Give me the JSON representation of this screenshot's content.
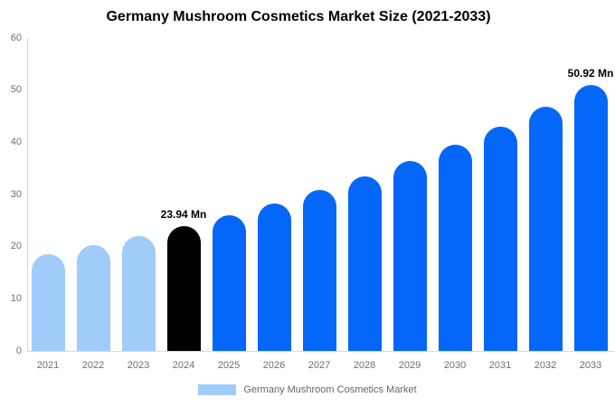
{
  "title": "Germany Mushroom Cosmetics Market Size (2021-2033)",
  "colors": {
    "bar_light": "#A0CCFA",
    "bar_highlight": "#000000",
    "bar_primary": "#0567FA",
    "axis_line": "#D9D9D9",
    "axis_text": "#6E6E6E",
    "legend_text": "#666666",
    "title_text": "#000000",
    "background": "#FFFFFF"
  },
  "chart_data": {
    "type": "bar",
    "title": "Germany Mushroom Cosmetics Market Size (2021-2033)",
    "xlabel": "",
    "ylabel": "",
    "ylim": [
      0,
      60
    ],
    "y_ticks": [
      0,
      10,
      20,
      30,
      40,
      50,
      60
    ],
    "grid": "off",
    "legend_position": "bottom",
    "unit": "Mn",
    "categories": [
      "2021",
      "2022",
      "2023",
      "2024",
      "2025",
      "2026",
      "2027",
      "2028",
      "2029",
      "2030",
      "2031",
      "2032",
      "2033"
    ],
    "values": [
      18.62,
      20.25,
      22.02,
      23.94,
      26.04,
      28.31,
      30.79,
      33.48,
      36.41,
      39.6,
      43.06,
      46.83,
      50.92
    ],
    "bar_color_roles": [
      "light",
      "light",
      "light",
      "highlight",
      "primary",
      "primary",
      "primary",
      "primary",
      "primary",
      "primary",
      "primary",
      "primary",
      "primary"
    ],
    "data_labels": [
      {
        "index": 3,
        "text": "23.94 Mn"
      },
      {
        "index": 12,
        "text": "50.92 Mn"
      }
    ],
    "legend": [
      {
        "label": "Germany Mushroom Cosmetics Market",
        "color": "#A0CCFA"
      }
    ]
  }
}
